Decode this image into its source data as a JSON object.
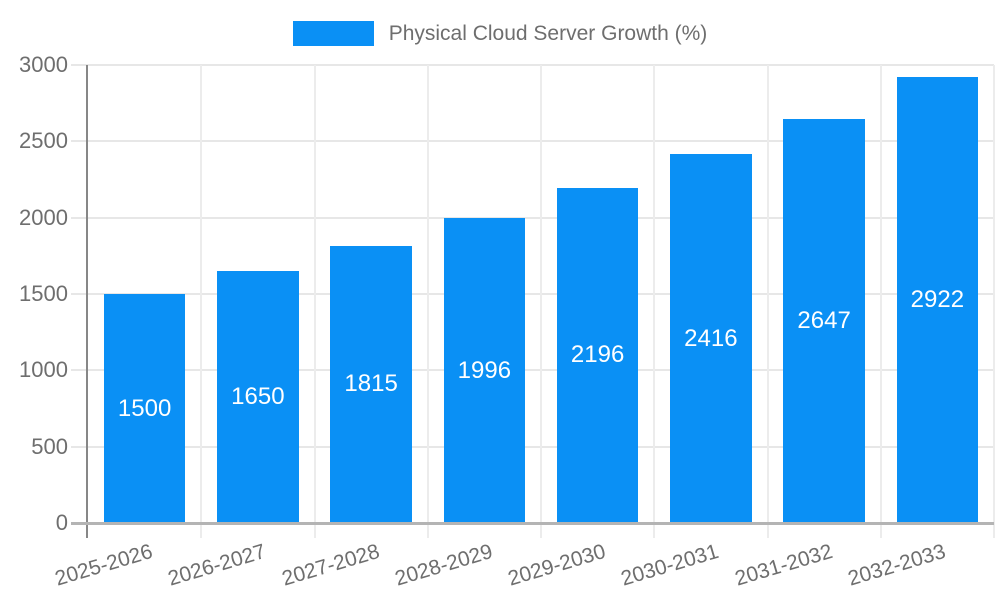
{
  "legend": {
    "label": "Physical Cloud Server Growth (%)"
  },
  "chart_data": {
    "type": "bar",
    "title": "Physical Cloud Server Growth (%)",
    "series_name": "Physical Cloud Server Growth (%)",
    "categories": [
      "2025-2026",
      "2026-2027",
      "2027-2028",
      "2028-2029",
      "2029-2030",
      "2030-2031",
      "2031-2032",
      "2032-2033"
    ],
    "values": [
      1500,
      1650,
      1815,
      1996,
      2196,
      2416,
      2647,
      2922
    ],
    "xlabel": "",
    "ylabel": "",
    "ylim": [
      0,
      3000
    ],
    "yticks": [
      0,
      500,
      1000,
      1500,
      2000,
      2500,
      3000
    ],
    "grid": true,
    "legend_position": "top-center",
    "value_labels": "inside-center",
    "colors": {
      "bar": "#0a90f5",
      "bar_label": "#ffffff",
      "axis_text": "#6e6e6e",
      "grid_line_h": "#e7e7e7",
      "grid_line_v": "#ececec",
      "x_axis_line": "#b4b4b4",
      "y_axis_line": "#878787",
      "background": "#ffffff"
    }
  }
}
